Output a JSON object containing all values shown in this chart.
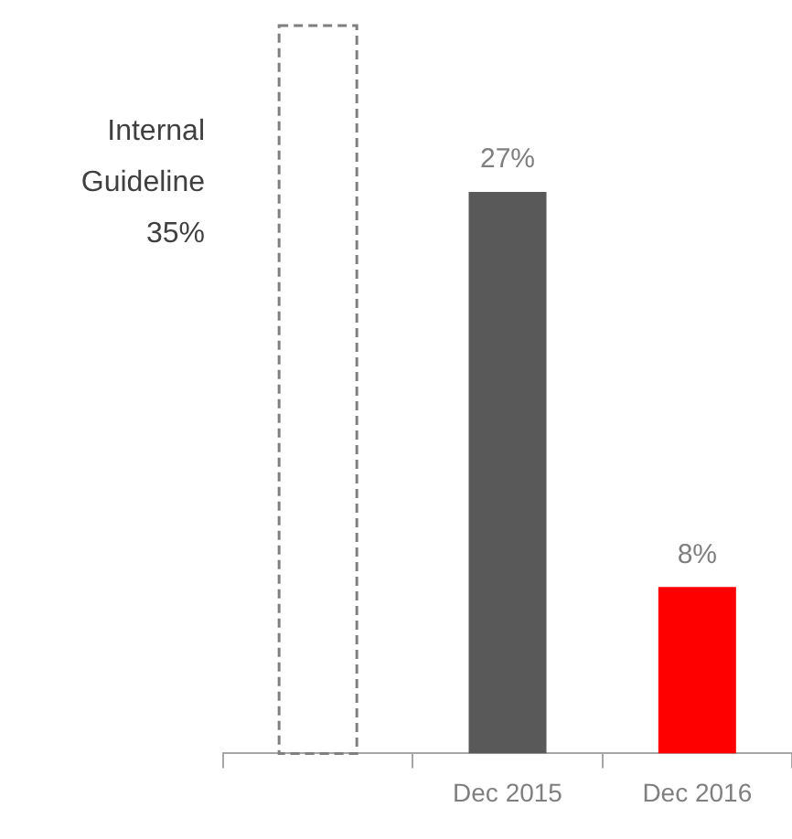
{
  "chart_data": {
    "type": "bar",
    "categories": [
      null,
      "Dec 2015",
      "Dec 2016"
    ],
    "values": [
      35,
      27,
      8
    ],
    "colors": [
      null,
      "#595959",
      "#ff0000"
    ],
    "value_labels": [
      null,
      "27%",
      "8%"
    ],
    "ylim": [
      0,
      35
    ],
    "tick_labels": "x",
    "grid": false,
    "legend": false,
    "annotations": [
      "Internal Guideline 35%"
    ]
  }
}
